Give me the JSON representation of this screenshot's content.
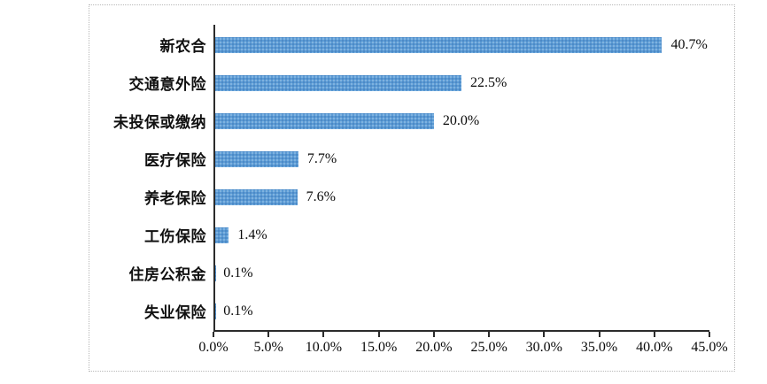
{
  "chart_data": {
    "type": "bar",
    "orientation": "horizontal",
    "title": "",
    "categories": [
      "新农合",
      "交通意外险",
      "未投保或缴纳",
      "医疗保险",
      "养老保险",
      "工伤保险",
      "住房公积金",
      "失业保险"
    ],
    "values": [
      40.7,
      22.5,
      20.0,
      7.7,
      7.6,
      1.4,
      0.1,
      0.1
    ],
    "value_labels": [
      "40.7%",
      "22.5%",
      "20.0%",
      "7.7%",
      "7.6%",
      "1.4%",
      "0.1%",
      "0.1%"
    ],
    "x_ticks": [
      "0.0%",
      "5.0%",
      "10.0%",
      "15.0%",
      "20.0%",
      "25.0%",
      "30.0%",
      "35.0%",
      "40.0%",
      "45.0%"
    ],
    "xlim": [
      0,
      45
    ],
    "grid": false,
    "legend": "none",
    "bar_color": "#5b9bd5",
    "axis_color": "#2b2b2b",
    "text_color": "#0a0a0a"
  }
}
